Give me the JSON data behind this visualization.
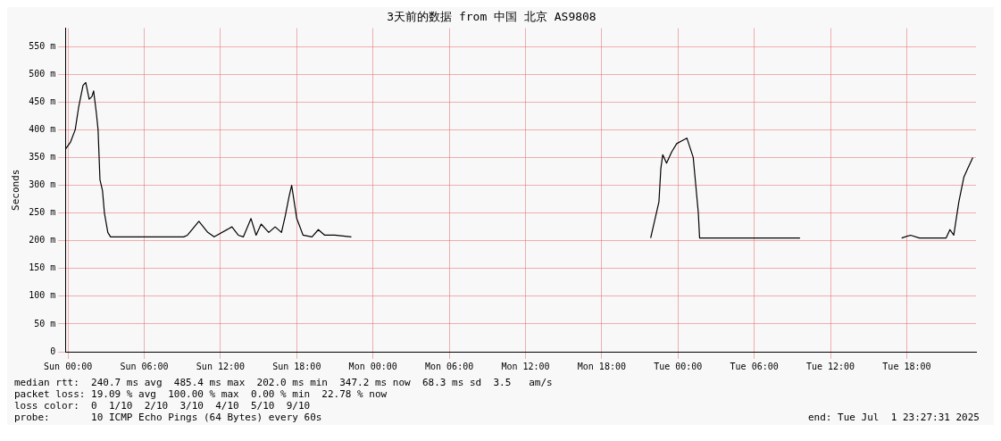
{
  "chart_data": {
    "type": "line",
    "title": "3天前的数据 from 中国 北京 AS9808",
    "ylabel": "Seconds",
    "x": [
      "2025-06-28T23:48",
      "2025-06-29T00:12",
      "2025-06-29T00:34",
      "2025-06-29T00:50",
      "2025-06-29T01:11",
      "2025-06-29T01:24",
      "2025-06-29T01:40",
      "2025-06-29T01:53",
      "2025-06-29T02:01",
      "2025-06-29T02:14",
      "2025-06-29T02:22",
      "2025-06-29T02:31",
      "2025-06-29T02:43",
      "2025-06-29T02:52",
      "2025-06-29T03:08",
      "2025-06-29T03:21",
      "2025-06-29T09:06",
      "2025-06-29T09:24",
      "2025-06-29T10:18",
      "2025-06-29T11:00",
      "2025-06-29T11:30",
      "2025-06-29T12:54",
      "2025-06-29T13:24",
      "2025-06-29T13:48",
      "2025-06-29T14:24",
      "2025-06-29T14:48",
      "2025-06-29T15:12",
      "2025-06-29T15:48",
      "2025-06-29T16:18",
      "2025-06-29T16:48",
      "2025-06-29T17:06",
      "2025-06-29T17:24",
      "2025-06-29T17:36",
      "2025-06-29T18:00",
      "2025-06-29T18:30",
      "2025-06-29T19:12",
      "2025-06-29T19:42",
      "2025-06-29T20:12",
      "2025-06-29T21:00",
      "2025-06-29T22:18",
      "2025-06-29T22:24",
      "2025-06-30T21:48",
      "2025-06-30T21:51",
      "2025-06-30T22:06",
      "2025-06-30T22:30",
      "2025-06-30T22:39",
      "2025-06-30T22:48",
      "2025-06-30T23:06",
      "2025-06-30T23:30",
      "2025-06-30T23:54",
      "2025-07-01T00:18",
      "2025-07-01T00:42",
      "2025-07-01T01:12",
      "2025-07-01T01:24",
      "2025-07-01T01:36",
      "2025-07-01T01:42",
      "2025-07-01T09:36",
      "2025-07-01T09:42",
      "2025-07-01T17:36",
      "2025-07-01T18:18",
      "2025-07-01T19:00",
      "2025-07-01T21:06",
      "2025-07-01T21:24",
      "2025-07-01T21:42",
      "2025-07-01T22:06",
      "2025-07-01T22:30",
      "2025-07-01T22:48",
      "2025-07-01T23:12"
    ],
    "series": [
      {
        "color": "#000000",
        "values": [
          365,
          378,
          400,
          440,
          480,
          485,
          455,
          460,
          470,
          430,
          400,
          310,
          290,
          250,
          215,
          207,
          207,
          210,
          235,
          215,
          207,
          225,
          210,
          207,
          240,
          210,
          230,
          215,
          225,
          215,
          245,
          280,
          300,
          240,
          210,
          207,
          220,
          210,
          210,
          207,
          null,
          null,
          205,
          230,
          270,
          330,
          355,
          340,
          360,
          375,
          380,
          385,
          350,
          300,
          250,
          205,
          205,
          null,
          205,
          210,
          205,
          205,
          220,
          210,
          270,
          315,
          330,
          350
        ]
      }
    ],
    "xlim": [
      "2025-06-28T23:48",
      "2025-07-01T23:27"
    ],
    "ylim": [
      0,
      583
    ],
    "xticks": [
      {
        "value": "2025-06-29T00:00",
        "label": "Sun 00:00"
      },
      {
        "value": "2025-06-29T06:00",
        "label": "Sun 06:00"
      },
      {
        "value": "2025-06-29T12:00",
        "label": "Sun 12:00"
      },
      {
        "value": "2025-06-29T18:00",
        "label": "Sun 18:00"
      },
      {
        "value": "2025-06-30T00:00",
        "label": "Mon 00:00"
      },
      {
        "value": "2025-06-30T06:00",
        "label": "Mon 06:00"
      },
      {
        "value": "2025-06-30T12:00",
        "label": "Mon 12:00"
      },
      {
        "value": "2025-06-30T18:00",
        "label": "Mon 18:00"
      },
      {
        "value": "2025-07-01T00:00",
        "label": "Tue 00:00"
      },
      {
        "value": "2025-07-01T06:00",
        "label": "Tue 06:00"
      },
      {
        "value": "2025-07-01T12:00",
        "label": "Tue 12:00"
      },
      {
        "value": "2025-07-01T18:00",
        "label": "Tue 18:00"
      }
    ],
    "yticks": [
      0,
      {
        "value": 50,
        "label": "50 m"
      },
      {
        "value": 100,
        "label": "100 m"
      },
      {
        "value": 150,
        "label": "150 m"
      },
      {
        "value": 200,
        "label": "200 m"
      },
      {
        "value": 250,
        "label": "250 m"
      },
      {
        "value": 300,
        "label": "300 m"
      },
      {
        "value": 350,
        "label": "350 m"
      },
      {
        "value": 400,
        "label": "400 m"
      },
      {
        "value": 450,
        "label": "450 m"
      },
      {
        "value": 500,
        "label": "500 m"
      },
      {
        "value": 550,
        "label": "550 m"
      }
    ],
    "grid": true,
    "legend": false,
    "marker": "none",
    "line_style": "solid",
    "annotations": [
      "median rtt:  240.7 ms avg  485.4 ms max  202.0 ms min  347.2 ms now  68.3 ms sd  3.5   am/s",
      "packet loss: 19.09 % avg  100.00 % max  0.00 % min  22.78 % now",
      "loss color:  0  1/10  2/10  3/10  4/10  5/10  9/10",
      "probe:       10 ICMP Echo Pings (64 Bytes) every 60s",
      "end: Tue Jul  1 23:27:31 2025"
    ]
  }
}
